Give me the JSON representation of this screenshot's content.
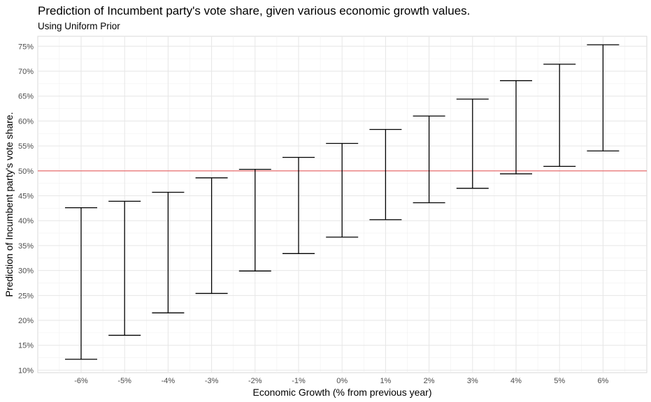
{
  "chart_data": {
    "type": "errorbar",
    "title": "Prediction of Incumbent party's vote share, given various economic growth values.",
    "subtitle": "Using Uniform Prior",
    "xlabel": "Economic Growth (% from previous year)",
    "ylabel": "Prediction of Incumbent party's vote share.",
    "categories": [
      "-6%",
      "-5%",
      "-4%",
      "-3%",
      "-2%",
      "-1%",
      "0%",
      "1%",
      "2%",
      "3%",
      "4%",
      "5%",
      "6%"
    ],
    "lower": [
      12.2,
      17.0,
      21.5,
      25.4,
      29.9,
      33.4,
      36.7,
      40.2,
      43.6,
      46.5,
      49.4,
      50.9,
      54.0
    ],
    "upper": [
      42.6,
      43.9,
      45.7,
      48.6,
      50.3,
      52.7,
      55.5,
      58.3,
      61.0,
      64.4,
      68.1,
      71.4,
      75.3
    ],
    "ylim": [
      9.5,
      77.0
    ],
    "yticks": [
      10,
      15,
      20,
      25,
      30,
      35,
      40,
      45,
      50,
      55,
      60,
      65,
      70,
      75
    ],
    "ytick_labels": [
      "10%",
      "15%",
      "20%",
      "25%",
      "30%",
      "35%",
      "40%",
      "45%",
      "50%",
      "55%",
      "60%",
      "65%",
      "70%",
      "75%"
    ],
    "reference_line": {
      "y": 50,
      "color": "#e8787a"
    },
    "bar_color": "#000000",
    "grid": true,
    "legend": "none"
  }
}
